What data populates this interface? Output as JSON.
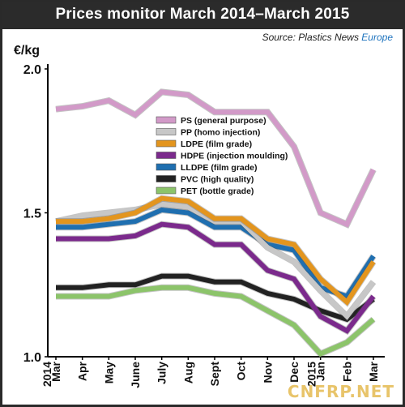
{
  "header": {
    "title": "Prices monitor March 2014–March 2015",
    "source_prefix": "Source: Plastics News ",
    "source_brand": "Europe"
  },
  "watermark": "CNFRP.NET",
  "chart_data": {
    "type": "line",
    "ylabel": "€/kg",
    "ylim": [
      1.0,
      2.0
    ],
    "yticks": [
      "1.0",
      "1.5",
      "2.0"
    ],
    "categories": [
      "Mar",
      "Apr",
      "May",
      "June",
      "July",
      "Aug",
      "Sept",
      "Oct",
      "Nov",
      "Dec",
      "Jan",
      "Feb",
      "Mar"
    ],
    "year_labels": [
      "2014",
      "2015"
    ],
    "legend_position": "top-center",
    "grid": false,
    "series": [
      {
        "name": "PS (general purpose)",
        "color": "#d29ac8",
        "values": [
          1.86,
          1.87,
          1.89,
          1.84,
          1.92,
          1.91,
          1.85,
          1.85,
          1.85,
          1.73,
          1.5,
          1.46,
          1.65
        ]
      },
      {
        "name": "PP (homo injection)",
        "color": "#c7c7c7",
        "values": [
          1.47,
          1.49,
          1.5,
          1.51,
          1.53,
          1.52,
          1.47,
          1.47,
          1.38,
          1.33,
          1.23,
          1.14,
          1.26
        ]
      },
      {
        "name": "LDPE (film grade)",
        "color": "#e3951e",
        "values": [
          1.47,
          1.47,
          1.48,
          1.5,
          1.55,
          1.54,
          1.48,
          1.48,
          1.41,
          1.39,
          1.27,
          1.19,
          1.33
        ]
      },
      {
        "name": "HDPE (injection moulding)",
        "color": "#7b2a8c",
        "values": [
          1.41,
          1.41,
          1.41,
          1.42,
          1.46,
          1.45,
          1.39,
          1.39,
          1.3,
          1.27,
          1.14,
          1.09,
          1.21
        ]
      },
      {
        "name": "LLDPE (film grade)",
        "color": "#1f6fb0",
        "values": [
          1.45,
          1.45,
          1.46,
          1.47,
          1.51,
          1.5,
          1.45,
          1.45,
          1.39,
          1.37,
          1.24,
          1.21,
          1.35
        ]
      },
      {
        "name": "PVC (high quality)",
        "color": "#222222",
        "values": [
          1.24,
          1.24,
          1.25,
          1.25,
          1.28,
          1.28,
          1.26,
          1.26,
          1.22,
          1.2,
          1.16,
          1.13,
          1.2
        ]
      },
      {
        "name": "PET (bottle grade)",
        "color": "#8cc46a",
        "values": [
          1.21,
          1.21,
          1.21,
          1.23,
          1.24,
          1.24,
          1.22,
          1.21,
          1.16,
          1.11,
          1.01,
          1.05,
          1.13
        ]
      }
    ]
  }
}
